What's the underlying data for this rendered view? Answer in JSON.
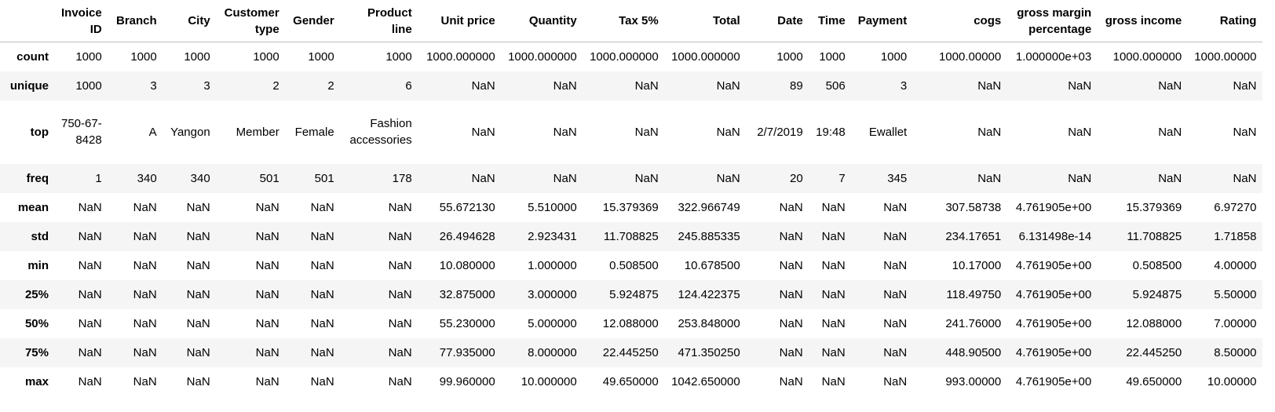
{
  "columns": [
    "Invoice ID",
    "Branch",
    "City",
    "Customer type",
    "Gender",
    "Product line",
    "Unit price",
    "Quantity",
    "Tax 5%",
    "Total",
    "Date",
    "Time",
    "Payment",
    "cogs",
    "gross margin percentage",
    "gross income",
    "Rating"
  ],
  "rows": [
    {
      "stat": "count",
      "cells": [
        "1000",
        "1000",
        "1000",
        "1000",
        "1000",
        "1000",
        "1000.000000",
        "1000.000000",
        "1000.000000",
        "1000.000000",
        "1000",
        "1000",
        "1000",
        "1000.00000",
        "1.000000e+03",
        "1000.000000",
        "1000.00000"
      ]
    },
    {
      "stat": "unique",
      "cells": [
        "1000",
        "3",
        "3",
        "2",
        "2",
        "6",
        "NaN",
        "NaN",
        "NaN",
        "NaN",
        "89",
        "506",
        "3",
        "NaN",
        "NaN",
        "NaN",
        "NaN"
      ]
    },
    {
      "stat": "top",
      "cells": [
        "750-67-8428",
        "A",
        "Yangon",
        "Member",
        "Female",
        "Fashion accessories",
        "NaN",
        "NaN",
        "NaN",
        "NaN",
        "2/7/2019",
        "19:48",
        "Ewallet",
        "NaN",
        "NaN",
        "NaN",
        "NaN"
      ]
    },
    {
      "stat": "freq",
      "cells": [
        "1",
        "340",
        "340",
        "501",
        "501",
        "178",
        "NaN",
        "NaN",
        "NaN",
        "NaN",
        "20",
        "7",
        "345",
        "NaN",
        "NaN",
        "NaN",
        "NaN"
      ]
    },
    {
      "stat": "mean",
      "cells": [
        "NaN",
        "NaN",
        "NaN",
        "NaN",
        "NaN",
        "NaN",
        "55.672130",
        "5.510000",
        "15.379369",
        "322.966749",
        "NaN",
        "NaN",
        "NaN",
        "307.58738",
        "4.761905e+00",
        "15.379369",
        "6.97270"
      ]
    },
    {
      "stat": "std",
      "cells": [
        "NaN",
        "NaN",
        "NaN",
        "NaN",
        "NaN",
        "NaN",
        "26.494628",
        "2.923431",
        "11.708825",
        "245.885335",
        "NaN",
        "NaN",
        "NaN",
        "234.17651",
        "6.131498e-14",
        "11.708825",
        "1.71858"
      ]
    },
    {
      "stat": "min",
      "cells": [
        "NaN",
        "NaN",
        "NaN",
        "NaN",
        "NaN",
        "NaN",
        "10.080000",
        "1.000000",
        "0.508500",
        "10.678500",
        "NaN",
        "NaN",
        "NaN",
        "10.17000",
        "4.761905e+00",
        "0.508500",
        "4.00000"
      ]
    },
    {
      "stat": "25%",
      "cells": [
        "NaN",
        "NaN",
        "NaN",
        "NaN",
        "NaN",
        "NaN",
        "32.875000",
        "3.000000",
        "5.924875",
        "124.422375",
        "NaN",
        "NaN",
        "NaN",
        "118.49750",
        "4.761905e+00",
        "5.924875",
        "5.50000"
      ]
    },
    {
      "stat": "50%",
      "cells": [
        "NaN",
        "NaN",
        "NaN",
        "NaN",
        "NaN",
        "NaN",
        "55.230000",
        "5.000000",
        "12.088000",
        "253.848000",
        "NaN",
        "NaN",
        "NaN",
        "241.76000",
        "4.761905e+00",
        "12.088000",
        "7.00000"
      ]
    },
    {
      "stat": "75%",
      "cells": [
        "NaN",
        "NaN",
        "NaN",
        "NaN",
        "NaN",
        "NaN",
        "77.935000",
        "8.000000",
        "22.445250",
        "471.350250",
        "NaN",
        "NaN",
        "NaN",
        "448.90500",
        "4.761905e+00",
        "22.445250",
        "8.50000"
      ]
    },
    {
      "stat": "max",
      "cells": [
        "NaN",
        "NaN",
        "NaN",
        "NaN",
        "NaN",
        "NaN",
        "99.960000",
        "10.000000",
        "49.650000",
        "1042.650000",
        "NaN",
        "NaN",
        "NaN",
        "993.00000",
        "4.761905e+00",
        "49.650000",
        "10.00000"
      ]
    }
  ]
}
